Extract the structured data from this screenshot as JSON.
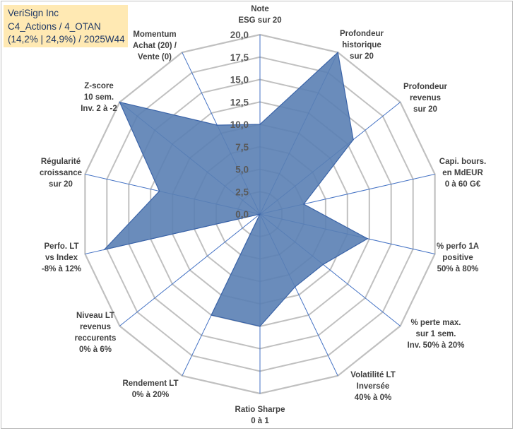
{
  "header": {
    "line1": "VeriSign Inc",
    "line2": "C4_Actions / 4_OTAN",
    "line3": "(14,2% | 24,9%) / 2025W44"
  },
  "colors": {
    "fill": "#5a7fb4",
    "stroke": "#3b64a8",
    "grid": "#c0c0c0",
    "spoke": "#4472c4",
    "title_bg": "#ffe9b3"
  },
  "chart_data": {
    "type": "radar",
    "title": "",
    "rmin": 0,
    "rmax": 20,
    "ticks": [
      "0,0",
      "2,5",
      "5,0",
      "7,5",
      "10,0",
      "12,5",
      "15,0",
      "17,5",
      "20,0"
    ],
    "axes": [
      {
        "label": [
          "Note",
          "ESG sur 20"
        ]
      },
      {
        "label": [
          "Profondeur",
          "historique",
          "sur 20"
        ]
      },
      {
        "label": [
          "Profondeur",
          "revenus",
          "sur 20"
        ]
      },
      {
        "label": [
          "Capi. bours.",
          "en MdEUR",
          "0 à 60 G€"
        ]
      },
      {
        "label": [
          "% perfo 1A",
          "positive",
          "50% à 80%"
        ]
      },
      {
        "label": [
          "% perte max.",
          "sur 1 sem.",
          "Inv. 50% à 20%"
        ]
      },
      {
        "label": [
          "Volatilité LT",
          "Inversée",
          "40% à 0%"
        ]
      },
      {
        "label": [
          "Ratio Sharpe",
          "0 à 1"
        ]
      },
      {
        "label": [
          "Rendement LT",
          "0% à 20%"
        ]
      },
      {
        "label": [
          "Niveau LT",
          "revenus",
          "reccurents",
          "0% à 6%"
        ]
      },
      {
        "label": [
          "Perfo. LT",
          "vs Index",
          "-8% à 12%"
        ]
      },
      {
        "label": [
          "Régularité",
          "croissance",
          "sur 20"
        ]
      },
      {
        "label": [
          "Z-score",
          "10 sem.",
          "Inv. 2 à -2"
        ]
      },
      {
        "label": [
          "Momentum",
          "Achat (20) /",
          "Vente (0)"
        ]
      }
    ],
    "series": [
      {
        "name": "VeriSign Inc",
        "values": [
          10.0,
          20.0,
          13.3,
          5.0,
          12.3,
          9.0,
          9.0,
          12.5,
          12.5,
          0.0,
          17.8,
          11.5,
          20.0,
          11.0
        ]
      }
    ]
  }
}
